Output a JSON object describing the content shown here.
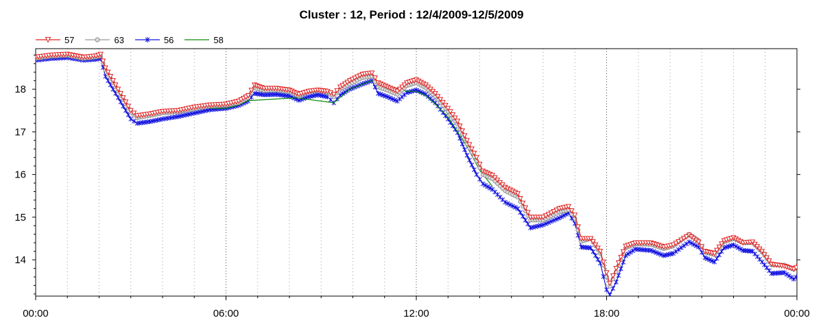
{
  "chart_data": {
    "type": "line",
    "title": "Cluster : 12, Period : 12/4/2009-12/5/2009",
    "xlabel": "",
    "ylabel": "",
    "x_ticks": [
      "00:00",
      "06:00",
      "12:00",
      "18:00",
      "00:00"
    ],
    "x_tick_hours": [
      0,
      6,
      12,
      18,
      24
    ],
    "xlim_hours": [
      0,
      24
    ],
    "y_ticks": [
      14,
      15,
      16,
      17,
      18
    ],
    "ylim": [
      13.15,
      18.95
    ],
    "grid": "vertical dotted at hourly intervals",
    "legend_position": "top-left",
    "series": [
      {
        "name": "57",
        "color": "#e02020",
        "marker": "triangle-down",
        "points": [
          [
            0,
            18.75
          ],
          [
            0.5,
            18.8
          ],
          [
            1,
            18.82
          ],
          [
            1.5,
            18.75
          ],
          [
            1.9,
            18.78
          ],
          [
            2.05,
            18.82
          ],
          [
            2.2,
            18.5
          ],
          [
            2.6,
            18.0
          ],
          [
            3.0,
            17.5
          ],
          [
            3.2,
            17.38
          ],
          [
            3.6,
            17.42
          ],
          [
            4,
            17.48
          ],
          [
            4.5,
            17.5
          ],
          [
            5,
            17.58
          ],
          [
            5.5,
            17.63
          ],
          [
            6,
            17.65
          ],
          [
            6.4,
            17.72
          ],
          [
            6.7,
            17.85
          ],
          [
            6.9,
            18.1
          ],
          [
            7.2,
            18.02
          ],
          [
            7.6,
            18.02
          ],
          [
            8,
            17.98
          ],
          [
            8.3,
            17.88
          ],
          [
            8.6,
            17.95
          ],
          [
            8.9,
            17.98
          ],
          [
            9.2,
            17.95
          ],
          [
            9.4,
            17.88
          ],
          [
            9.6,
            18.05
          ],
          [
            9.9,
            18.2
          ],
          [
            10.3,
            18.35
          ],
          [
            10.6,
            18.38
          ],
          [
            10.8,
            18.15
          ],
          [
            11.1,
            18.05
          ],
          [
            11.4,
            17.95
          ],
          [
            11.7,
            18.15
          ],
          [
            12.0,
            18.22
          ],
          [
            12.3,
            18.1
          ],
          [
            12.6,
            17.9
          ],
          [
            13.0,
            17.55
          ],
          [
            13.3,
            17.25
          ],
          [
            13.6,
            16.8
          ],
          [
            13.9,
            16.4
          ],
          [
            14.1,
            16.08
          ],
          [
            14.4,
            15.98
          ],
          [
            14.8,
            15.7
          ],
          [
            15.2,
            15.55
          ],
          [
            15.6,
            15.0
          ],
          [
            16.0,
            15.0
          ],
          [
            16.5,
            15.2
          ],
          [
            16.8,
            15.25
          ],
          [
            17.0,
            15.05
          ],
          [
            17.2,
            14.5
          ],
          [
            17.5,
            14.5
          ],
          [
            17.8,
            14.2
          ],
          [
            18.0,
            13.7
          ],
          [
            18.1,
            13.45
          ],
          [
            18.3,
            13.8
          ],
          [
            18.6,
            14.32
          ],
          [
            18.9,
            14.4
          ],
          [
            19.4,
            14.4
          ],
          [
            19.8,
            14.3
          ],
          [
            20.1,
            14.35
          ],
          [
            20.6,
            14.58
          ],
          [
            20.9,
            14.42
          ],
          [
            21.1,
            14.2
          ],
          [
            21.4,
            14.15
          ],
          [
            21.7,
            14.45
          ],
          [
            22.0,
            14.52
          ],
          [
            22.3,
            14.4
          ],
          [
            22.6,
            14.42
          ],
          [
            22.9,
            14.2
          ],
          [
            23.2,
            13.9
          ],
          [
            23.6,
            13.85
          ],
          [
            23.9,
            13.78
          ],
          [
            24.2,
            13.92
          ],
          [
            24.5,
            14.05
          ],
          [
            24.8,
            14.0
          ]
        ]
      },
      {
        "name": "63",
        "color": "#999999",
        "marker": "circle",
        "points": [
          [
            0,
            18.72
          ],
          [
            0.5,
            18.77
          ],
          [
            1,
            18.79
          ],
          [
            1.5,
            18.72
          ],
          [
            1.9,
            18.75
          ],
          [
            2.05,
            18.78
          ],
          [
            2.2,
            18.45
          ],
          [
            2.6,
            17.95
          ],
          [
            3.0,
            17.45
          ],
          [
            3.2,
            17.33
          ],
          [
            3.6,
            17.38
          ],
          [
            4,
            17.44
          ],
          [
            4.5,
            17.47
          ],
          [
            5,
            17.54
          ],
          [
            5.5,
            17.6
          ],
          [
            6,
            17.62
          ],
          [
            6.4,
            17.68
          ],
          [
            6.7,
            17.8
          ],
          [
            6.9,
            18.03
          ],
          [
            7.2,
            17.97
          ],
          [
            7.6,
            17.98
          ],
          [
            8,
            17.94
          ],
          [
            8.3,
            17.84
          ],
          [
            8.6,
            17.94
          ],
          [
            8.9,
            17.98
          ],
          [
            9.2,
            17.92
          ],
          [
            9.4,
            17.82
          ],
          [
            9.6,
            18.0
          ],
          [
            9.9,
            18.12
          ],
          [
            10.3,
            18.27
          ],
          [
            10.6,
            18.3
          ],
          [
            10.8,
            18.05
          ],
          [
            11.1,
            17.97
          ],
          [
            11.4,
            17.88
          ],
          [
            11.7,
            18.08
          ],
          [
            12.0,
            18.15
          ],
          [
            12.3,
            18.03
          ],
          [
            12.6,
            17.83
          ],
          [
            13.0,
            17.48
          ],
          [
            13.3,
            17.18
          ],
          [
            13.6,
            16.72
          ],
          [
            13.9,
            16.32
          ],
          [
            14.1,
            16.0
          ],
          [
            14.4,
            15.9
          ],
          [
            14.8,
            15.62
          ],
          [
            15.2,
            15.47
          ],
          [
            15.6,
            14.93
          ],
          [
            16.0,
            14.93
          ],
          [
            16.5,
            15.12
          ],
          [
            16.8,
            15.17
          ],
          [
            17.0,
            14.97
          ],
          [
            17.2,
            14.43
          ],
          [
            17.5,
            14.5
          ],
          [
            17.8,
            14.15
          ],
          [
            18.0,
            13.6
          ],
          [
            18.1,
            13.38
          ],
          [
            18.3,
            13.72
          ],
          [
            18.6,
            14.28
          ],
          [
            18.9,
            14.37
          ],
          [
            19.4,
            14.36
          ],
          [
            19.8,
            14.26
          ],
          [
            20.1,
            14.32
          ],
          [
            20.6,
            14.6
          ],
          [
            20.9,
            14.45
          ],
          [
            21.1,
            14.18
          ],
          [
            21.4,
            14.12
          ],
          [
            21.7,
            14.42
          ],
          [
            22.0,
            14.5
          ],
          [
            22.3,
            14.4
          ],
          [
            22.6,
            14.4
          ],
          [
            22.9,
            14.18
          ],
          [
            23.2,
            13.88
          ],
          [
            23.6,
            13.88
          ],
          [
            23.9,
            13.78
          ],
          [
            24.2,
            13.92
          ],
          [
            24.5,
            14.05
          ],
          [
            24.8,
            14.0
          ]
        ]
      },
      {
        "name": "56",
        "color": "#1010e0",
        "marker": "asterisk",
        "points": [
          [
            0,
            18.68
          ],
          [
            0.5,
            18.72
          ],
          [
            1,
            18.74
          ],
          [
            1.5,
            18.68
          ],
          [
            1.9,
            18.7
          ],
          [
            2.05,
            18.72
          ],
          [
            2.2,
            18.3
          ],
          [
            2.6,
            17.8
          ],
          [
            3.0,
            17.3
          ],
          [
            3.2,
            17.2
          ],
          [
            3.6,
            17.24
          ],
          [
            4,
            17.3
          ],
          [
            4.5,
            17.36
          ],
          [
            5,
            17.44
          ],
          [
            5.5,
            17.52
          ],
          [
            6,
            17.55
          ],
          [
            6.4,
            17.62
          ],
          [
            6.7,
            17.72
          ],
          [
            6.9,
            17.9
          ],
          [
            7.2,
            17.87
          ],
          [
            7.6,
            17.88
          ],
          [
            8,
            17.84
          ],
          [
            8.3,
            17.74
          ],
          [
            8.6,
            17.82
          ],
          [
            8.9,
            17.87
          ],
          [
            9.2,
            17.82
          ],
          [
            9.4,
            17.68
          ],
          [
            9.6,
            17.86
          ],
          [
            9.9,
            18.0
          ],
          [
            10.3,
            18.12
          ],
          [
            10.6,
            18.2
          ],
          [
            10.8,
            17.9
          ],
          [
            11.1,
            17.82
          ],
          [
            11.4,
            17.72
          ],
          [
            11.7,
            17.92
          ],
          [
            12.0,
            17.98
          ],
          [
            12.3,
            17.88
          ],
          [
            12.6,
            17.68
          ],
          [
            13.0,
            17.3
          ],
          [
            13.3,
            16.98
          ],
          [
            13.6,
            16.45
          ],
          [
            13.9,
            16.0
          ],
          [
            14.1,
            15.78
          ],
          [
            14.4,
            15.65
          ],
          [
            14.8,
            15.35
          ],
          [
            15.2,
            15.2
          ],
          [
            15.6,
            14.75
          ],
          [
            16.0,
            14.82
          ],
          [
            16.5,
            14.98
          ],
          [
            16.8,
            15.1
          ],
          [
            17.0,
            14.85
          ],
          [
            17.2,
            14.3
          ],
          [
            17.5,
            14.28
          ],
          [
            17.8,
            13.92
          ],
          [
            18.0,
            13.3
          ],
          [
            18.1,
            13.18
          ],
          [
            18.3,
            13.48
          ],
          [
            18.6,
            14.1
          ],
          [
            18.9,
            14.25
          ],
          [
            19.4,
            14.22
          ],
          [
            19.8,
            14.1
          ],
          [
            20.1,
            14.15
          ],
          [
            20.6,
            14.42
          ],
          [
            20.9,
            14.3
          ],
          [
            21.1,
            14.05
          ],
          [
            21.4,
            13.95
          ],
          [
            21.7,
            14.28
          ],
          [
            22.0,
            14.35
          ],
          [
            22.3,
            14.22
          ],
          [
            22.6,
            14.2
          ],
          [
            22.9,
            13.95
          ],
          [
            23.2,
            13.68
          ],
          [
            23.6,
            13.7
          ],
          [
            23.9,
            13.55
          ],
          [
            24.2,
            13.72
          ],
          [
            24.5,
            13.92
          ],
          [
            24.8,
            13.85
          ]
        ]
      },
      {
        "name": "58",
        "color": "#0a8a0a",
        "marker": "none",
        "points": [
          [
            5.5,
            17.55
          ],
          [
            6,
            17.55
          ],
          [
            6.4,
            17.63
          ],
          [
            6.7,
            17.73
          ],
          [
            8.2,
            17.8
          ],
          [
            9.4,
            17.68
          ],
          [
            9.9,
            18.0
          ],
          [
            10.6,
            18.2
          ],
          [
            11.7,
            17.95
          ],
          [
            12.0,
            17.95
          ],
          [
            12.3,
            17.85
          ],
          [
            12.6,
            17.65
          ],
          [
            13.0,
            17.35
          ],
          [
            13.6,
            16.65
          ],
          [
            14.0,
            16.1
          ],
          [
            14.4,
            15.72
          ]
        ]
      }
    ]
  }
}
